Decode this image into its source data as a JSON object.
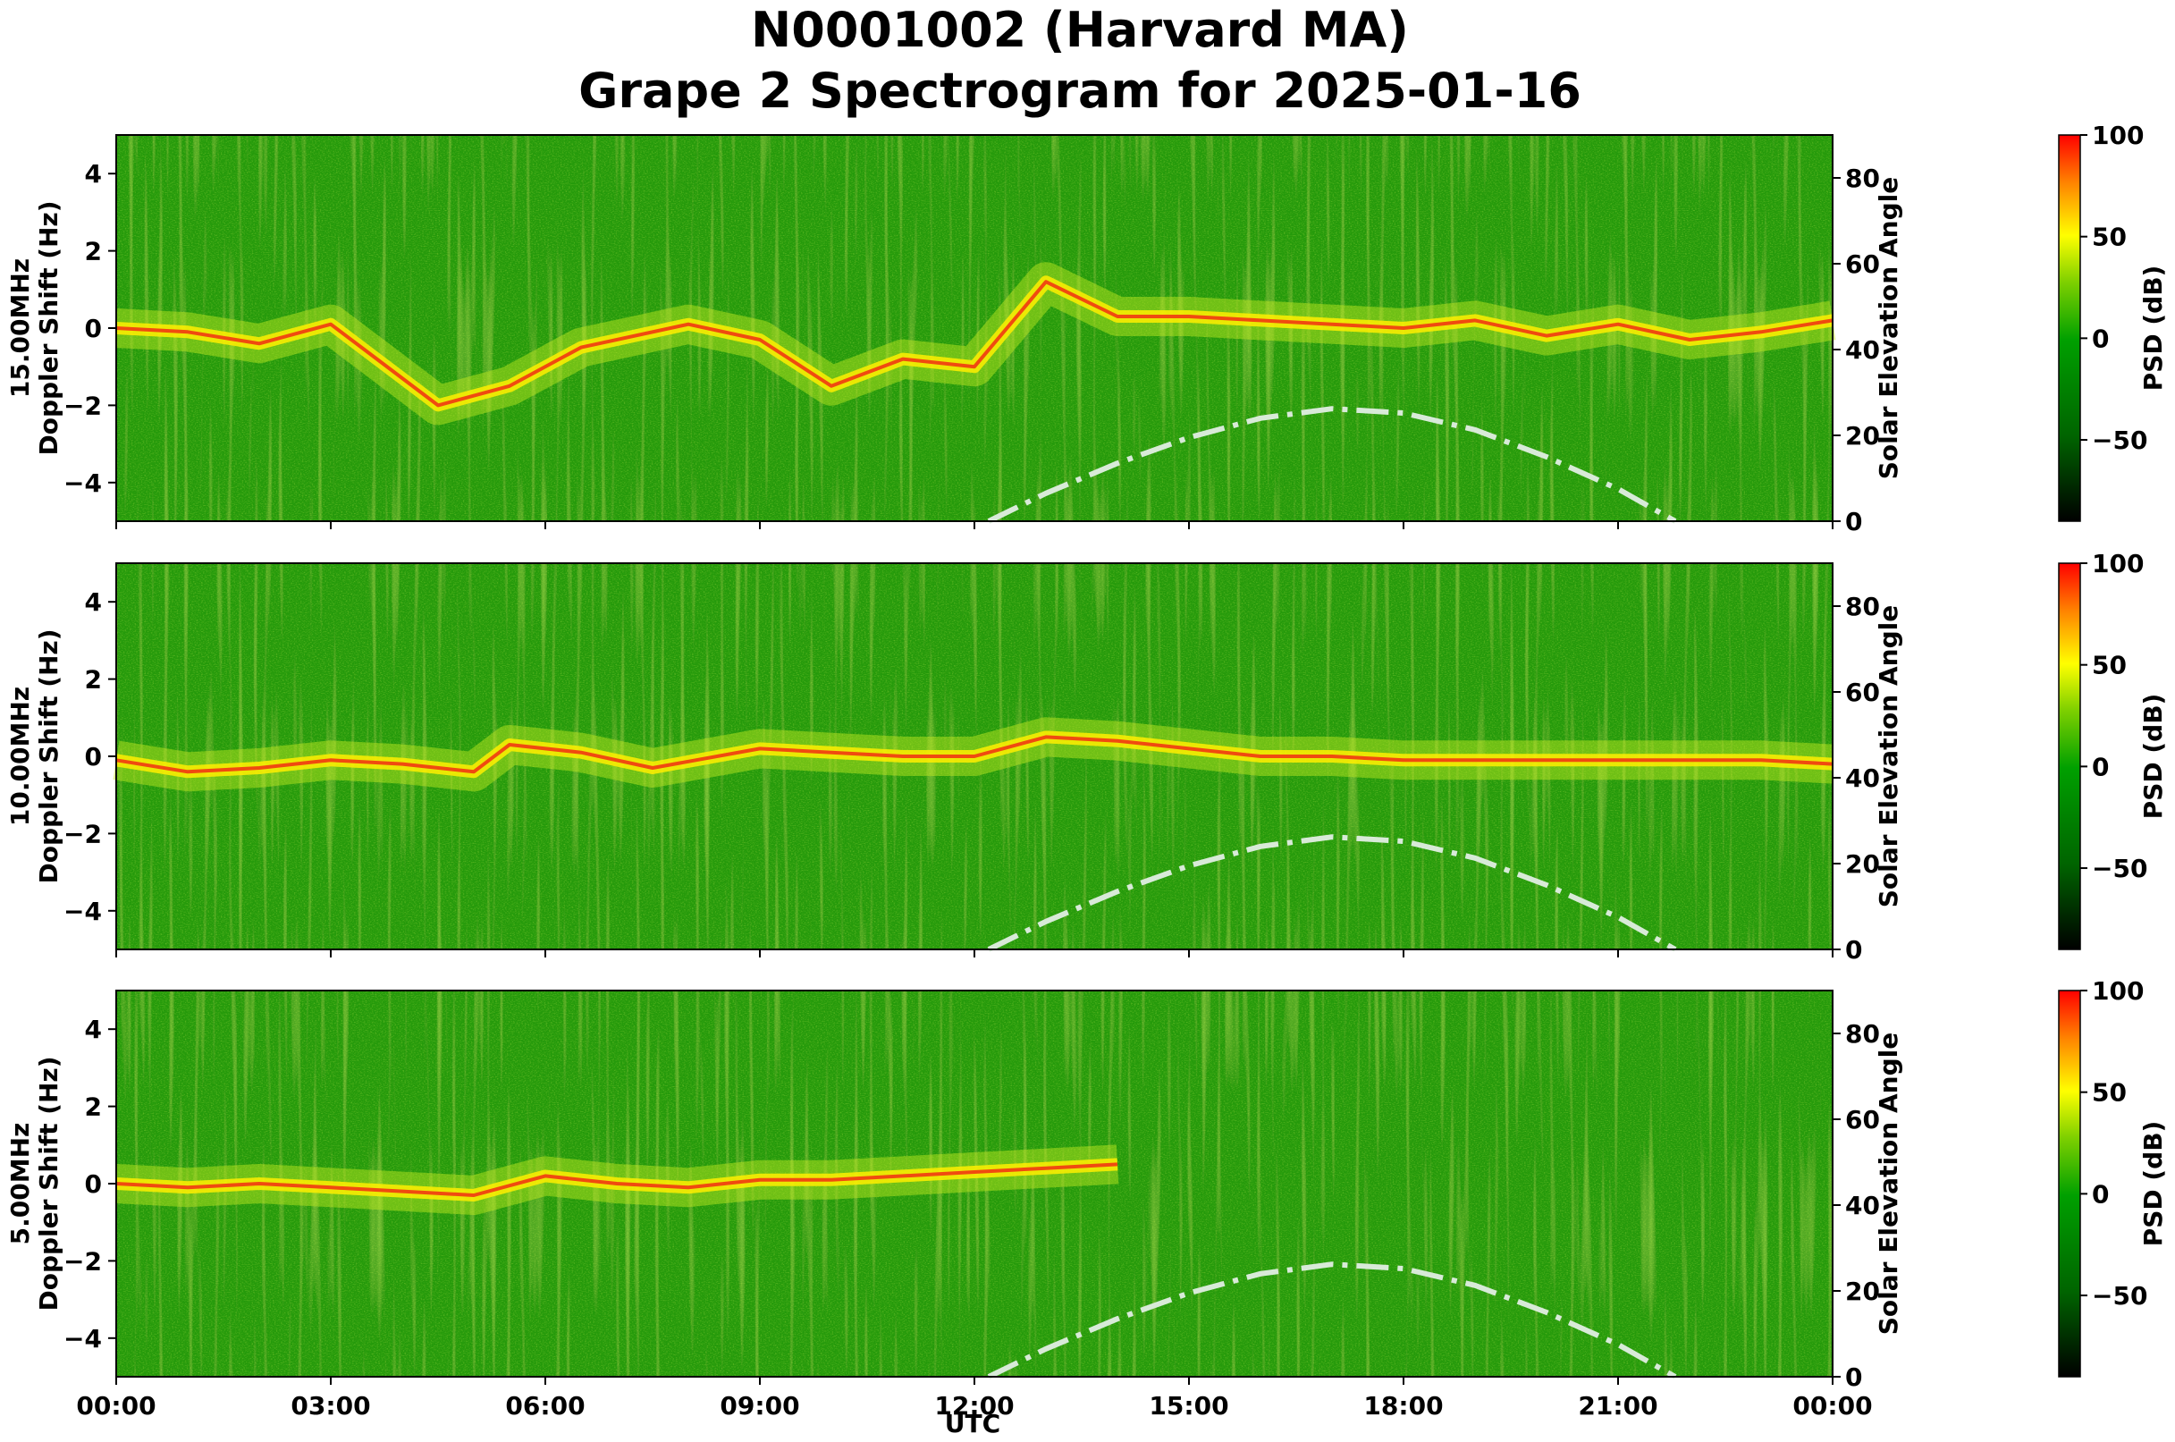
{
  "chart_data": {
    "type": "heatmap",
    "title": "N0001002 (Harvard MA)",
    "subtitle": "Grape 2 Spectrogram for 2025-01-16",
    "xlabel": "UTC",
    "x_ticks": [
      "00:00",
      "03:00",
      "06:00",
      "09:00",
      "12:00",
      "15:00",
      "18:00",
      "21:00",
      "00:00"
    ],
    "x_range_hours": [
      0,
      24
    ],
    "y_range_hz": [
      -5,
      5
    ],
    "y_ticks": [
      4,
      2,
      0,
      -2,
      -4
    ],
    "right_axis_label": "Solar Elevation Angle",
    "right_axis_range": [
      0,
      90
    ],
    "right_axis_ticks": [
      80,
      60,
      40,
      20,
      0
    ],
    "colorbar_label": "PSD (dB)",
    "colorbar_range": [
      -90,
      100
    ],
    "colorbar_ticks": [
      100,
      50,
      0,
      -50
    ],
    "colormap": [
      "#000000",
      "#006400",
      "#00a000",
      "#7fd000",
      "#ffff00",
      "#ff8000",
      "#ff0000"
    ],
    "solar_curve_color": "#d8ead8",
    "solar_elevation": {
      "x_hours": [
        12.2,
        13,
        14,
        15,
        16,
        17,
        18,
        19,
        20,
        21,
        21.8
      ],
      "elevation_deg": [
        0,
        6.5,
        13.5,
        19.5,
        24,
        26.2,
        25.2,
        21.3,
        15,
        7.5,
        0
      ]
    },
    "panels": [
      {
        "frequency_label": "15.00MHz",
        "ylabel": "Doppler Shift (Hz)",
        "trace_hours": [
          0,
          1,
          2,
          3,
          3.5,
          4.5,
          5.5,
          6.5,
          8,
          9,
          10,
          11,
          12,
          13,
          14,
          15,
          16,
          17,
          18,
          19,
          20,
          21,
          22,
          23,
          24
        ],
        "trace_hz": [
          0,
          -0.1,
          -0.4,
          0.1,
          -0.6,
          -2.0,
          -1.5,
          -0.5,
          0.1,
          -0.3,
          -1.5,
          -0.8,
          -1.0,
          1.2,
          0.3,
          0.3,
          0.2,
          0.1,
          0.0,
          0.2,
          -0.2,
          0.1,
          -0.3,
          -0.1,
          0.2
        ]
      },
      {
        "frequency_label": "10.00MHz",
        "ylabel": "Doppler Shift (Hz)",
        "trace_hours": [
          0,
          1,
          2,
          3,
          4,
          5,
          5.5,
          6.5,
          7.5,
          9,
          10,
          11,
          12,
          13,
          14,
          15,
          16,
          17,
          18,
          19,
          20,
          21,
          22,
          23,
          24
        ],
        "trace_hz": [
          -0.1,
          -0.4,
          -0.3,
          -0.1,
          -0.2,
          -0.4,
          0.3,
          0.1,
          -0.3,
          0.2,
          0.1,
          0.0,
          0.0,
          0.5,
          0.4,
          0.2,
          0.0,
          0.0,
          -0.1,
          -0.1,
          -0.1,
          -0.1,
          -0.1,
          -0.1,
          -0.2
        ]
      },
      {
        "frequency_label": "5.00MHz",
        "ylabel": "Doppler Shift (Hz)",
        "trace_hours": [
          0,
          1,
          2,
          3,
          4,
          5,
          6,
          7,
          8,
          9,
          10,
          11,
          12,
          13,
          14
        ],
        "trace_hz": [
          0.0,
          -0.1,
          0.0,
          -0.1,
          -0.2,
          -0.3,
          0.2,
          0.0,
          -0.1,
          0.1,
          0.1,
          0.2,
          0.3,
          0.4,
          0.5
        ]
      }
    ]
  }
}
